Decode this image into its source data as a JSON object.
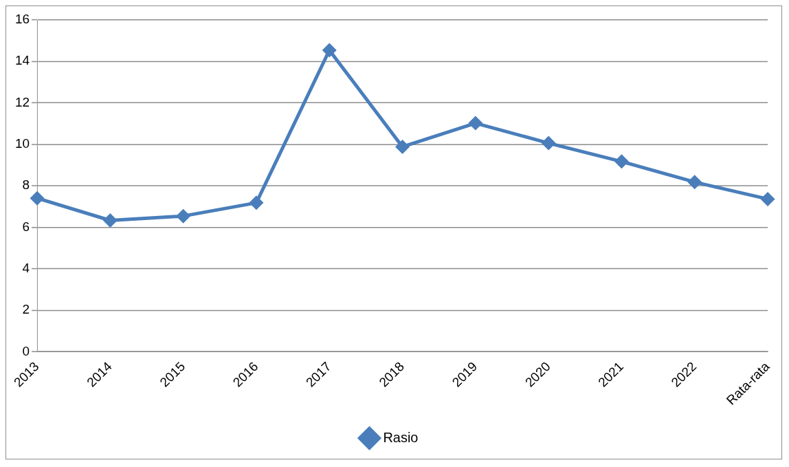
{
  "chart_data": {
    "type": "line",
    "categories": [
      "2013",
      "2014",
      "2015",
      "2016",
      "2017",
      "2018",
      "2019",
      "2020",
      "2021",
      "2022",
      "Rata-rata"
    ],
    "series": [
      {
        "name": "Rasio",
        "color": "#4a7ebb",
        "values": [
          7.4,
          6.33,
          6.54,
          7.18,
          14.54,
          9.88,
          11.02,
          10.06,
          9.17,
          8.18,
          7.36
        ]
      }
    ],
    "ylim": [
      0,
      16
    ],
    "yticks": [
      0,
      2,
      4,
      6,
      8,
      10,
      12,
      14,
      16
    ],
    "grid": "y",
    "legend": "bottom",
    "marker": "diamond",
    "line_style": "solid"
  }
}
